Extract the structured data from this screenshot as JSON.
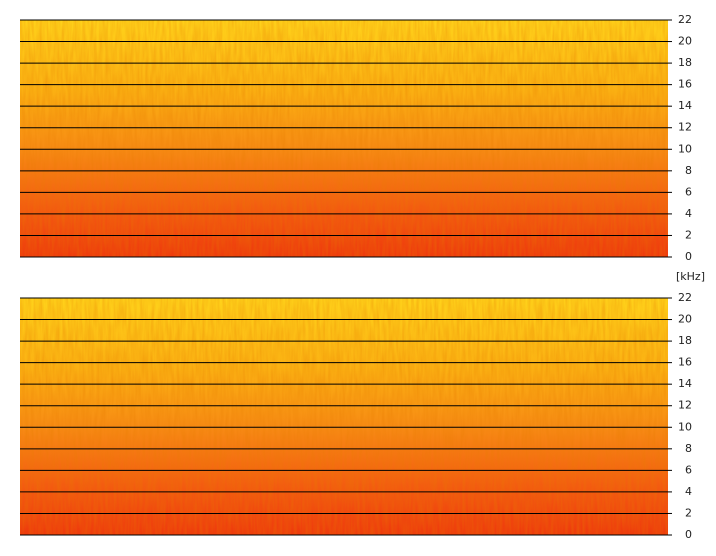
{
  "chart_data": [
    {
      "type": "spectrogram",
      "ylim": [
        0,
        22
      ],
      "yticks": [
        0,
        2,
        4,
        6,
        8,
        10,
        12,
        14,
        16,
        18,
        20,
        22
      ]
    },
    {
      "type": "spectrogram",
      "ylabel": "[kHz]",
      "ylim": [
        0,
        22
      ],
      "yticks": [
        0,
        2,
        4,
        6,
        8,
        10,
        12,
        14,
        16,
        18,
        20,
        22
      ]
    }
  ]
}
